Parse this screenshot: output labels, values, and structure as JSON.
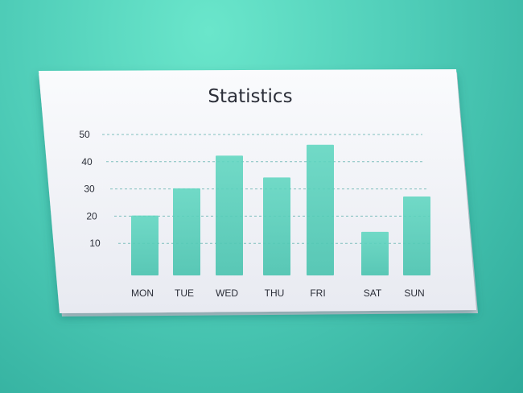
{
  "chart_data": {
    "type": "bar",
    "title": "Statistics",
    "categories": [
      "MON",
      "TUE",
      "WED",
      "THU",
      "FRI",
      "SAT",
      "SUN"
    ],
    "values": [
      22,
      32,
      44,
      36,
      48,
      16,
      29
    ],
    "yticks": [
      10,
      20,
      30,
      40,
      50
    ],
    "grid": true,
    "colors": {
      "bar": "#5fd6c0",
      "grid": "#7fbfbd",
      "panel": "#f3f4f8",
      "text": "#2b2e38"
    }
  }
}
